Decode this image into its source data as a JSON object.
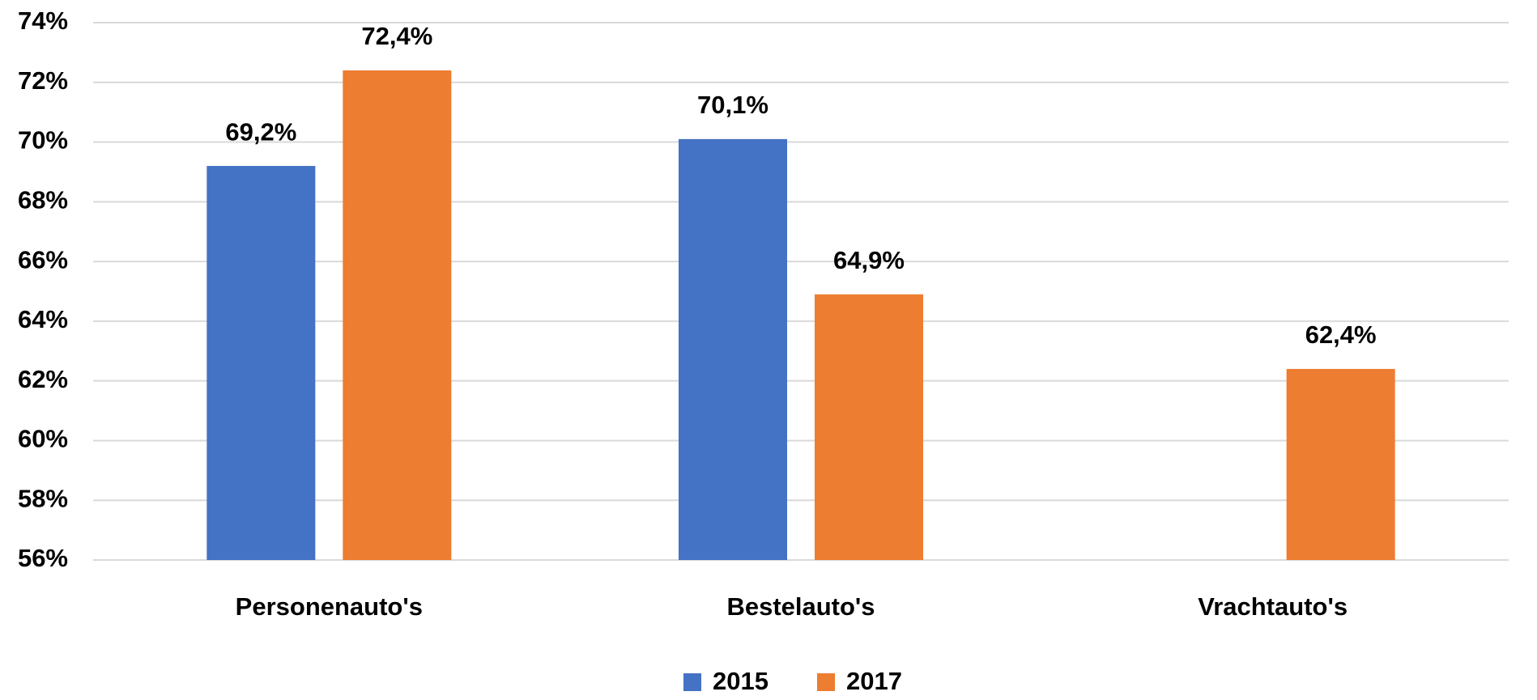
{
  "chart_data": {
    "type": "bar",
    "categories": [
      "Personenauto's",
      "Bestelauto's",
      "Vrachtauto's"
    ],
    "series": [
      {
        "name": "2015",
        "color": "#4472c4",
        "values": [
          69.2,
          70.1,
          null
        ],
        "value_labels": [
          "69,2%",
          "70,1%",
          null
        ]
      },
      {
        "name": "2017",
        "color": "#ed7d31",
        "values": [
          72.4,
          64.9,
          62.4
        ],
        "value_labels": [
          "72,4%",
          "64,9%",
          "62,4%"
        ]
      }
    ],
    "ylim": [
      56,
      74
    ],
    "yticks": [
      {
        "value": 56,
        "label": "56%"
      },
      {
        "value": 58,
        "label": "58%"
      },
      {
        "value": 60,
        "label": "60%"
      },
      {
        "value": 62,
        "label": "62%"
      },
      {
        "value": 64,
        "label": "64%"
      },
      {
        "value": 66,
        "label": "66%"
      },
      {
        "value": 68,
        "label": "68%"
      },
      {
        "value": 70,
        "label": "70%"
      },
      {
        "value": 72,
        "label": "72%"
      },
      {
        "value": 74,
        "label": "74%"
      }
    ],
    "grid": true,
    "legend": "bottom"
  }
}
